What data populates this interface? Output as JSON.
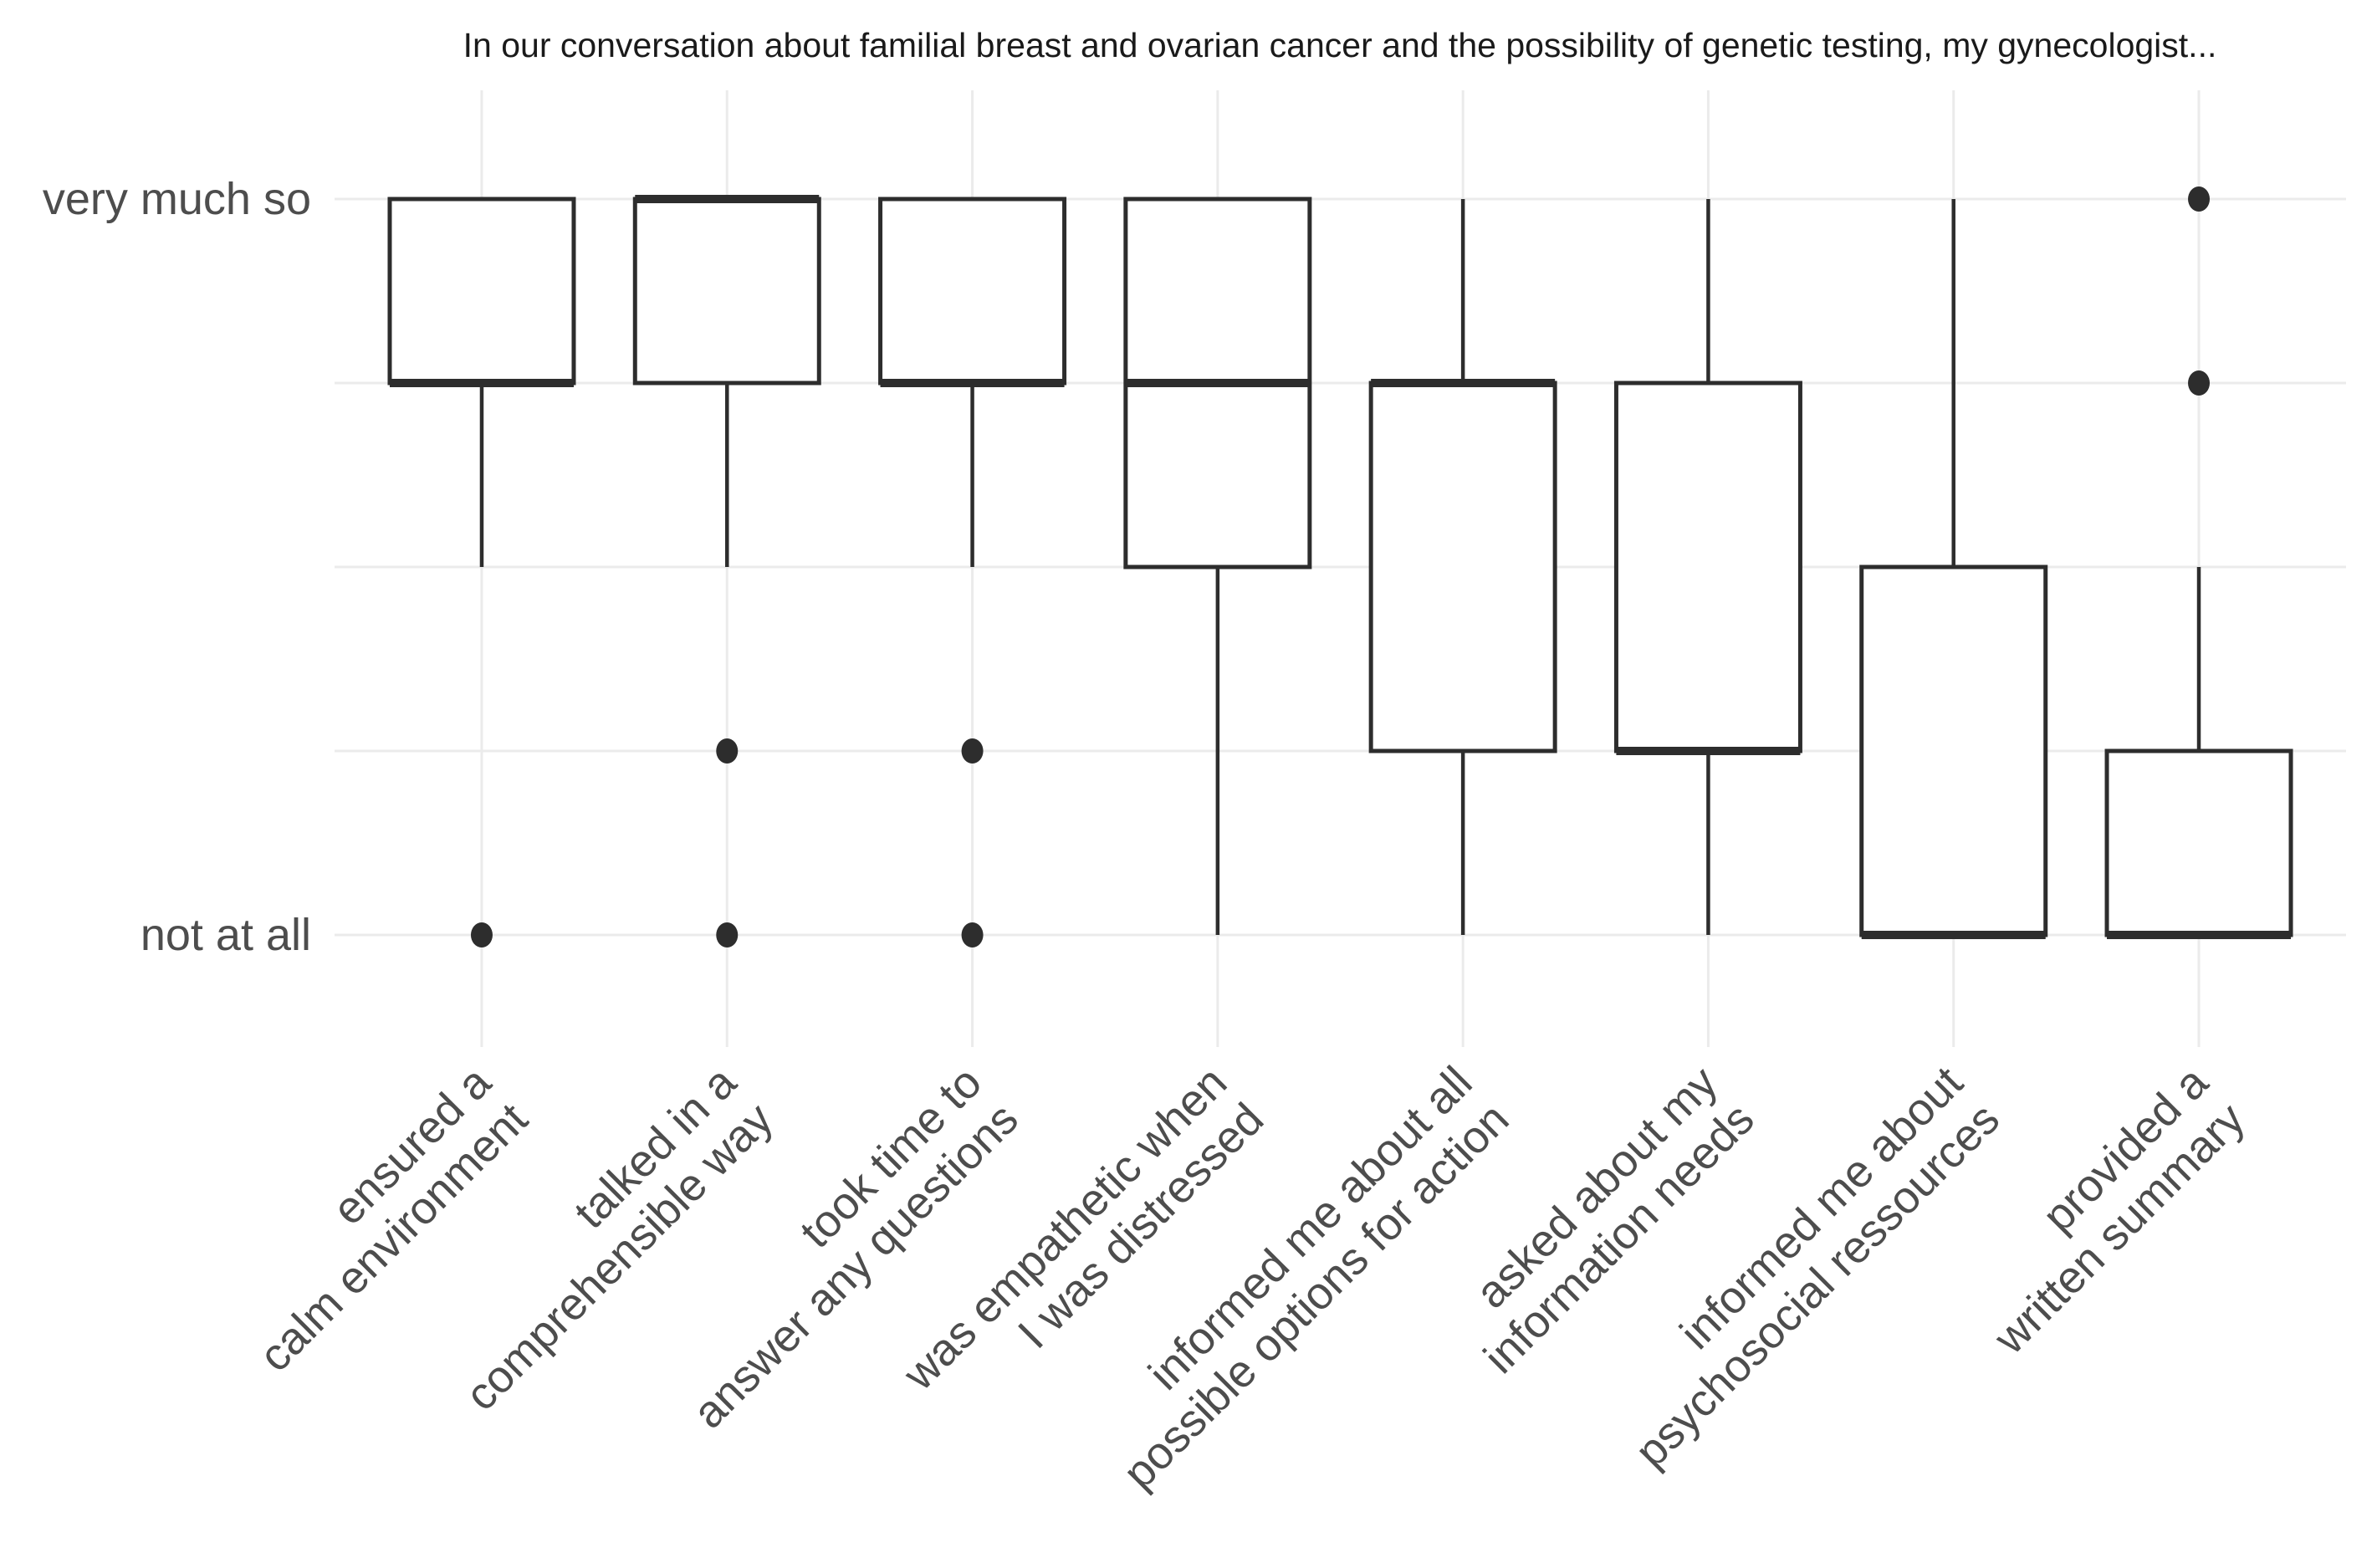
{
  "chart_data": {
    "type": "boxplot",
    "title": "In our conversation about familial breast and ovarian cancer and the possibility of genetic testing, my gynecologist...",
    "y_axis": {
      "min": 1,
      "max": 5,
      "tick_labels": [
        {
          "value": 5,
          "label": "very much so"
        },
        {
          "value": 1,
          "label": "not at all"
        }
      ],
      "gridline_values": [
        5,
        4,
        3,
        2,
        1
      ]
    },
    "x_axis": {
      "label_rotation_deg": 45
    },
    "grid": true,
    "legend": false,
    "boxes": [
      {
        "category": "ensured a calm environment",
        "label_lines": [
          "ensured a",
          "calm environment"
        ],
        "whisker_low": 3,
        "q1": 4,
        "median": 4,
        "q3": 5,
        "whisker_high": 5,
        "outliers": [
          1
        ]
      },
      {
        "category": "talked in a comprehensible way",
        "label_lines": [
          "talked in a",
          "comprehensible way"
        ],
        "whisker_low": 3,
        "q1": 4,
        "median": 5,
        "q3": 5,
        "whisker_high": 5,
        "outliers": [
          2,
          1
        ]
      },
      {
        "category": "took time to answer any questions",
        "label_lines": [
          "took time to",
          "answer any questions"
        ],
        "whisker_low": 3,
        "q1": 4,
        "median": 4,
        "q3": 5,
        "whisker_high": 5,
        "outliers": [
          2,
          1
        ]
      },
      {
        "category": "was empathetic when I was distressed",
        "label_lines": [
          "was empathetic when",
          "I was distressed"
        ],
        "whisker_low": 1,
        "q1": 3,
        "median": 4,
        "q3": 5,
        "whisker_high": 5,
        "outliers": []
      },
      {
        "category": "informed me about all possible options for action",
        "label_lines": [
          "informed me about all",
          "possible options for action"
        ],
        "whisker_low": 1,
        "q1": 2,
        "median": 4,
        "q3": 4,
        "whisker_high": 5,
        "outliers": []
      },
      {
        "category": "asked about my information needs",
        "label_lines": [
          "asked about my",
          "information needs"
        ],
        "whisker_low": 1,
        "q1": 2,
        "median": 2,
        "q3": 4,
        "whisker_high": 5,
        "outliers": []
      },
      {
        "category": "informed me about psychosocial ressources",
        "label_lines": [
          "informed me about",
          "psychosocial ressources"
        ],
        "whisker_low": 1,
        "q1": 1,
        "median": 1,
        "q3": 3,
        "whisker_high": 5,
        "outliers": []
      },
      {
        "category": "provided a written summary",
        "label_lines": [
          "provided a",
          "written summary"
        ],
        "whisker_low": 1,
        "q1": 1,
        "median": 1,
        "q3": 2,
        "whisker_high": 3,
        "outliers": [
          4,
          5
        ]
      }
    ]
  },
  "colors": {
    "background": "#ffffff",
    "box_stroke": "#2d2d2d",
    "box_fill": "#ffffff",
    "gridline": "#ebebeb",
    "axis_text": "#4d4d4d",
    "title_text": "#1a1a1a"
  }
}
